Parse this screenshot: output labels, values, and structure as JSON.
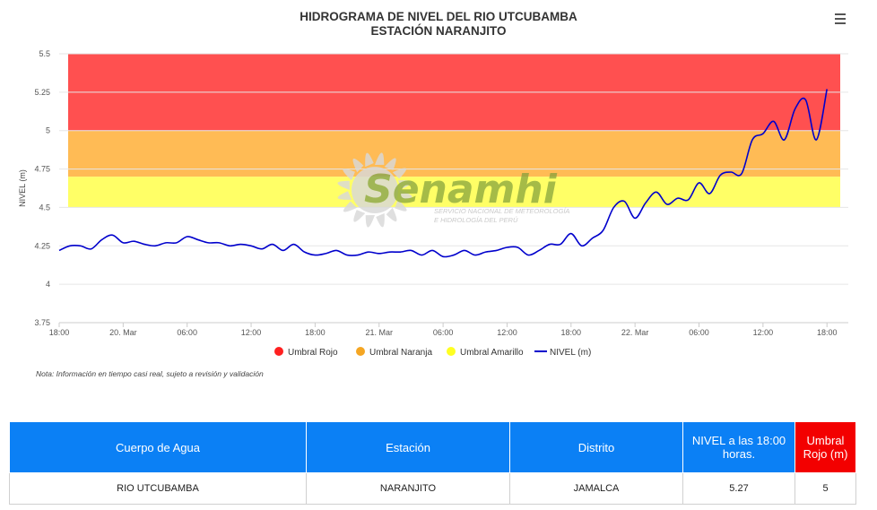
{
  "chart_data": {
    "type": "line",
    "title": "HIDROGRAMA DE NIVEL DEL RIO UTCUBAMBA",
    "subtitle": "ESTACIÓN NARANJITO",
    "ylabel": "NIVEL (m)",
    "ylim": [
      3.75,
      5.5
    ],
    "yticks": [
      "3.75",
      "4",
      "4.25",
      "4.5",
      "4.75",
      "5",
      "5.25",
      "5.5"
    ],
    "xlim": [
      "2024-03-19 18:00",
      "2024-03-22 20:00"
    ],
    "xticks": [
      {
        "t": "2024-03-19 18:00",
        "label": "18:00"
      },
      {
        "t": "2024-03-20 00:00",
        "label": "20. Mar"
      },
      {
        "t": "2024-03-20 06:00",
        "label": "06:00"
      },
      {
        "t": "2024-03-20 12:00",
        "label": "12:00"
      },
      {
        "t": "2024-03-20 18:00",
        "label": "18:00"
      },
      {
        "t": "2024-03-21 00:00",
        "label": "21. Mar"
      },
      {
        "t": "2024-03-21 06:00",
        "label": "06:00"
      },
      {
        "t": "2024-03-21 12:00",
        "label": "12:00"
      },
      {
        "t": "2024-03-21 18:00",
        "label": "18:00"
      },
      {
        "t": "2024-03-22 00:00",
        "label": "22. Mar"
      },
      {
        "t": "2024-03-22 06:00",
        "label": "06:00"
      },
      {
        "t": "2024-03-22 12:00",
        "label": "12:00"
      },
      {
        "t": "2024-03-22 18:00",
        "label": "18:00"
      }
    ],
    "bands": [
      {
        "name": "Umbral Rojo",
        "from": 5.0,
        "to": 5.5,
        "color": "#ff5050"
      },
      {
        "name": "Umbral Naranja",
        "from": 4.7,
        "to": 5.0,
        "color": "#ffbb55"
      },
      {
        "name": "Umbral Amarillo",
        "from": 4.5,
        "to": 4.7,
        "color": "#ffff66"
      }
    ],
    "series": [
      {
        "name": "NIVEL (m)",
        "color": "#0000cc",
        "points": [
          [
            "2024-03-19 18:00",
            4.22
          ],
          [
            "2024-03-19 19:00",
            4.25
          ],
          [
            "2024-03-19 20:00",
            4.25
          ],
          [
            "2024-03-19 21:00",
            4.23
          ],
          [
            "2024-03-19 22:00",
            4.29
          ],
          [
            "2024-03-19 23:00",
            4.32
          ],
          [
            "2024-03-20 00:00",
            4.27
          ],
          [
            "2024-03-20 01:00",
            4.28
          ],
          [
            "2024-03-20 02:00",
            4.26
          ],
          [
            "2024-03-20 03:00",
            4.25
          ],
          [
            "2024-03-20 04:00",
            4.27
          ],
          [
            "2024-03-20 05:00",
            4.27
          ],
          [
            "2024-03-20 06:00",
            4.31
          ],
          [
            "2024-03-20 07:00",
            4.29
          ],
          [
            "2024-03-20 08:00",
            4.27
          ],
          [
            "2024-03-20 09:00",
            4.27
          ],
          [
            "2024-03-20 10:00",
            4.25
          ],
          [
            "2024-03-20 11:00",
            4.26
          ],
          [
            "2024-03-20 12:00",
            4.25
          ],
          [
            "2024-03-20 13:00",
            4.23
          ],
          [
            "2024-03-20 14:00",
            4.26
          ],
          [
            "2024-03-20 15:00",
            4.22
          ],
          [
            "2024-03-20 16:00",
            4.26
          ],
          [
            "2024-03-20 17:00",
            4.21
          ],
          [
            "2024-03-20 18:00",
            4.19
          ],
          [
            "2024-03-20 19:00",
            4.2
          ],
          [
            "2024-03-20 20:00",
            4.22
          ],
          [
            "2024-03-20 21:00",
            4.19
          ],
          [
            "2024-03-20 22:00",
            4.19
          ],
          [
            "2024-03-20 23:00",
            4.21
          ],
          [
            "2024-03-21 00:00",
            4.2
          ],
          [
            "2024-03-21 01:00",
            4.21
          ],
          [
            "2024-03-21 02:00",
            4.21
          ],
          [
            "2024-03-21 03:00",
            4.22
          ],
          [
            "2024-03-21 04:00",
            4.19
          ],
          [
            "2024-03-21 05:00",
            4.22
          ],
          [
            "2024-03-21 06:00",
            4.18
          ],
          [
            "2024-03-21 07:00",
            4.19
          ],
          [
            "2024-03-21 08:00",
            4.22
          ],
          [
            "2024-03-21 09:00",
            4.19
          ],
          [
            "2024-03-21 10:00",
            4.21
          ],
          [
            "2024-03-21 11:00",
            4.22
          ],
          [
            "2024-03-21 12:00",
            4.24
          ],
          [
            "2024-03-21 13:00",
            4.24
          ],
          [
            "2024-03-21 14:00",
            4.19
          ],
          [
            "2024-03-21 15:00",
            4.22
          ],
          [
            "2024-03-21 16:00",
            4.26
          ],
          [
            "2024-03-21 17:00",
            4.26
          ],
          [
            "2024-03-21 18:00",
            4.33
          ],
          [
            "2024-03-21 19:00",
            4.25
          ],
          [
            "2024-03-21 20:00",
            4.3
          ],
          [
            "2024-03-21 21:00",
            4.35
          ],
          [
            "2024-03-21 22:00",
            4.5
          ],
          [
            "2024-03-21 23:00",
            4.54
          ],
          [
            "2024-03-22 00:00",
            4.43
          ],
          [
            "2024-03-22 01:00",
            4.53
          ],
          [
            "2024-03-22 02:00",
            4.6
          ],
          [
            "2024-03-22 03:00",
            4.52
          ],
          [
            "2024-03-22 04:00",
            4.56
          ],
          [
            "2024-03-22 05:00",
            4.55
          ],
          [
            "2024-03-22 06:00",
            4.66
          ],
          [
            "2024-03-22 07:00",
            4.59
          ],
          [
            "2024-03-22 08:00",
            4.71
          ],
          [
            "2024-03-22 09:00",
            4.73
          ],
          [
            "2024-03-22 10:00",
            4.72
          ],
          [
            "2024-03-22 11:00",
            4.94
          ],
          [
            "2024-03-22 12:00",
            4.98
          ],
          [
            "2024-03-22 13:00",
            5.06
          ],
          [
            "2024-03-22 14:00",
            4.94
          ],
          [
            "2024-03-22 15:00",
            5.14
          ],
          [
            "2024-03-22 16:00",
            5.2
          ],
          [
            "2024-03-22 17:00",
            4.94
          ],
          [
            "2024-03-22 18:00",
            5.27
          ]
        ]
      }
    ],
    "legend": {
      "position": "bottom-center",
      "items": [
        {
          "label": "Umbral Rojo",
          "color": "#ff2020",
          "symbol": "circle"
        },
        {
          "label": "Umbral Naranja",
          "color": "#f5a623",
          "symbol": "circle"
        },
        {
          "label": "Umbral Amarillo",
          "color": "#ffff22",
          "symbol": "circle"
        },
        {
          "label": "NIVEL (m)",
          "color": "#0000cc",
          "symbol": "line"
        }
      ]
    },
    "grid": {
      "y": true,
      "x": false
    }
  },
  "watermark": {
    "name": "Senamhi",
    "tagline_1": "SERVICIO NACIONAL DE METEOROLOGÍA",
    "tagline_2": "E HIDROLOGÍA DEL PERÚ"
  },
  "note": "Nota: Información en tiempo casi real, sujeto a revisión y validación",
  "menu_icon": "hamburger-menu-icon",
  "table": {
    "headers": [
      "Cuerpo de Agua",
      "Estación",
      "Distrito",
      "NIVEL a las 18:00 horas.",
      "Umbral Rojo (m)"
    ],
    "header_colors": [
      "#0b80f5",
      "#0b80f5",
      "#0b80f5",
      "#0b80f5",
      "#f30000"
    ],
    "rows": [
      [
        "RIO UTCUBAMBA",
        "NARANJITO",
        "JAMALCA",
        "5.27",
        "5"
      ]
    ]
  }
}
